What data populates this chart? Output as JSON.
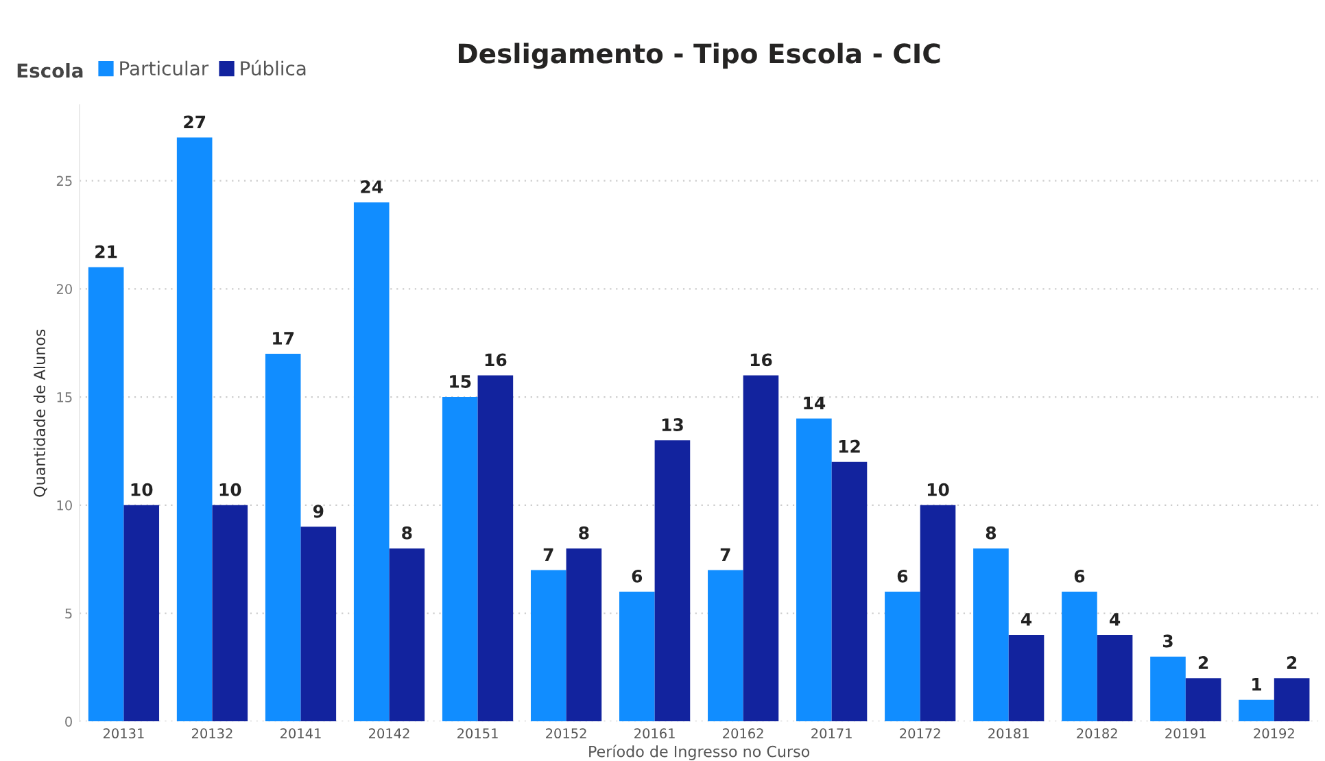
{
  "chart_data": {
    "type": "bar",
    "title": "Desligamento - Tipo Escola - CIC",
    "xlabel": "Período de Ingresso no Curso",
    "ylabel": "Quantidade de Alunos",
    "legend_title": "Escola",
    "categories": [
      "20131",
      "20132",
      "20141",
      "20142",
      "20151",
      "20152",
      "20161",
      "20162",
      "20171",
      "20172",
      "20181",
      "20182",
      "20191",
      "20192"
    ],
    "series": [
      {
        "name": "Particular",
        "color": "#118dff",
        "values": [
          21,
          27,
          17,
          24,
          15,
          7,
          6,
          7,
          14,
          6,
          8,
          6,
          3,
          1
        ]
      },
      {
        "name": "Pública",
        "color": "#12239e",
        "values": [
          10,
          10,
          9,
          8,
          16,
          8,
          13,
          16,
          12,
          10,
          4,
          4,
          2,
          2
        ]
      }
    ],
    "ylim": [
      0,
      28.5
    ],
    "yticks": [
      0,
      5,
      10,
      15,
      20,
      25
    ],
    "grid": "y",
    "legend": "top left",
    "data_labels": true
  }
}
